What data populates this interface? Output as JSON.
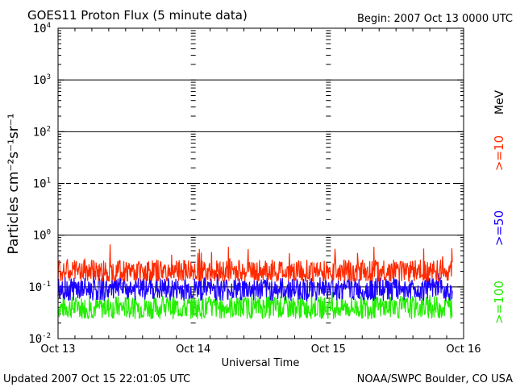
{
  "chart_data": {
    "type": "line",
    "title": "GOES11 Proton Flux (5 minute data)",
    "begin_label": "Begin: 2007 Oct 13 0000 UTC",
    "xlabel": "Universal Time",
    "ylabel": "Particles cm⁻²s⁻¹sr⁻¹",
    "y_scale": "log",
    "ylim": [
      0.01,
      10000
    ],
    "y_ticks": [
      {
        "base": "10",
        "exp": "-2"
      },
      {
        "base": "10",
        "exp": "-1"
      },
      {
        "base": "10",
        "exp": "0"
      },
      {
        "base": "10",
        "exp": "1"
      },
      {
        "base": "10",
        "exp": "2"
      },
      {
        "base": "10",
        "exp": "3"
      },
      {
        "base": "10",
        "exp": "4"
      }
    ],
    "x_ticks": [
      "Oct 13",
      "Oct 14",
      "Oct 15",
      "Oct 16"
    ],
    "xlim": [
      "2007-10-13 00:00",
      "2007-10-16 00:00"
    ],
    "reference_lines": [
      {
        "value": 0.1,
        "style": "solid"
      },
      {
        "value": 1,
        "style": "solid"
      },
      {
        "value": 10,
        "style": "dashed"
      },
      {
        "value": 100,
        "style": "solid"
      },
      {
        "value": 1000,
        "style": "solid"
      }
    ],
    "units_label": "MeV",
    "series": [
      {
        "name": ">=10",
        "color": "#ff2a00",
        "x_start": "2007-10-13 00:00",
        "x_end": "2007-10-15 22:00",
        "values_typical": 0.2,
        "range": [
          0.13,
          0.7
        ]
      },
      {
        "name": ">=50",
        "color": "#1a00ff",
        "x_start": "2007-10-13 00:00",
        "x_end": "2007-10-15 22:00",
        "values_typical": 0.09,
        "range": [
          0.05,
          0.2
        ]
      },
      {
        "name": ">=100",
        "color": "#22ee00",
        "x_start": "2007-10-13 00:00",
        "x_end": "2007-10-15 22:00",
        "values_typical": 0.04,
        "range": [
          0.02,
          0.08
        ]
      }
    ]
  },
  "footer": {
    "updated": "Updated 2007 Oct 15 22:01:05 UTC",
    "source": "NOAA/SWPC Boulder, CO USA"
  }
}
